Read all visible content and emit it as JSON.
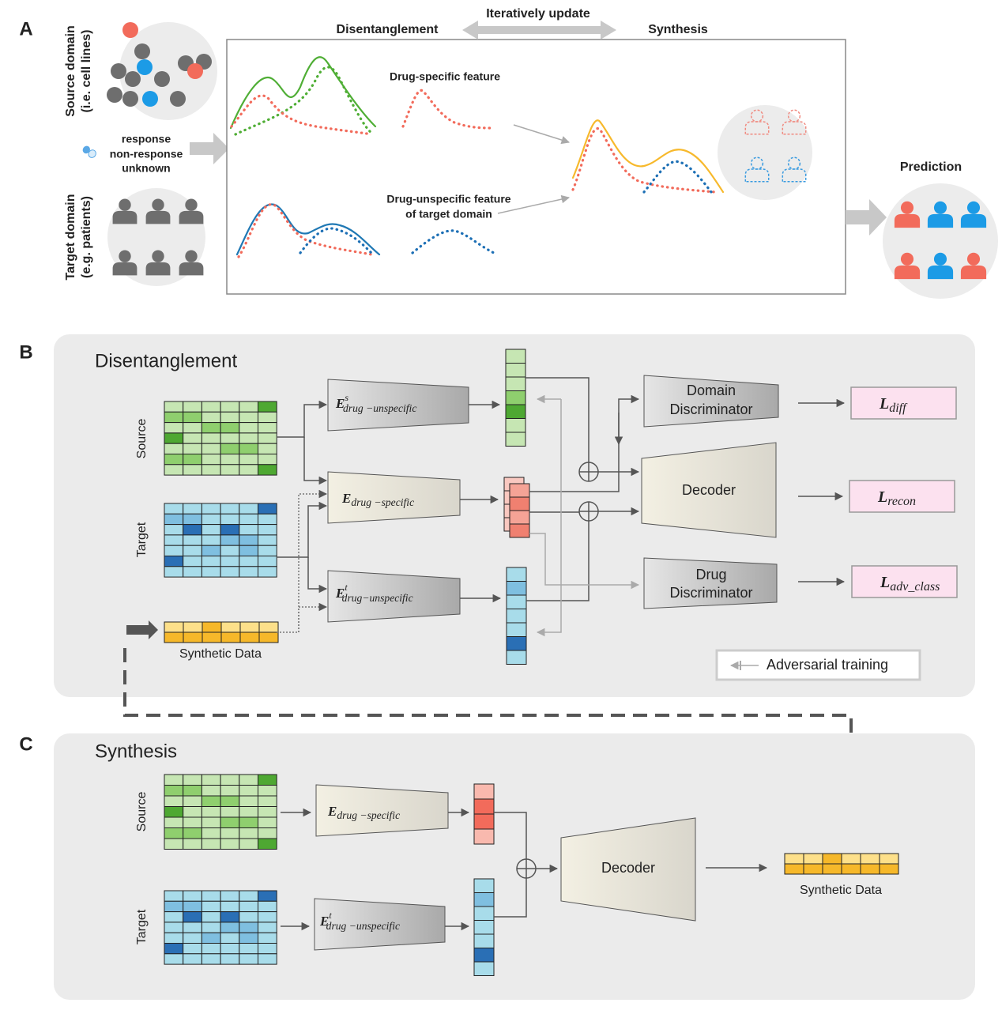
{
  "panel_a": {
    "label": "A",
    "source_domain": [
      "Source domain",
      "(i.e. cell lines)"
    ],
    "target_domain": [
      "Target domain",
      "(e.g. patients)"
    ],
    "legend": [
      "response",
      "non-response",
      "unknown"
    ],
    "disentanglement": "Disentanglement",
    "iteratively_update": "Iteratively update",
    "synthesis": "Synthesis",
    "drug_specific_feature": "Drug-specific feature",
    "drug_unspecific_feature": [
      "Drug-unspecific feature",
      "of target domain"
    ],
    "prediction": "Prediction"
  },
  "panel_b": {
    "label": "B",
    "title": "Disentanglement",
    "source": "Source",
    "target": "Target",
    "synthetic_data": "Synthetic Data",
    "encoder_source_unspecific": {
      "symbol": "E",
      "superscript": "s",
      "subscript": "drug −unspecific"
    },
    "encoder_specific": {
      "symbol": "E",
      "subscript": "drug −specific"
    },
    "encoder_target_unspecific": {
      "symbol": "E",
      "superscript": "t",
      "subscript": "drug−unspecific"
    },
    "domain_discriminator": [
      "Domain",
      "Discriminator"
    ],
    "decoder": "Decoder",
    "drug_discriminator": [
      "Drug",
      "Discriminator"
    ],
    "loss_diff": {
      "symbol": "L",
      "subscript": "diff"
    },
    "loss_recon": {
      "symbol": "L",
      "subscript": "recon"
    },
    "loss_adv_class": {
      "symbol": "L",
      "subscript": "adv_class"
    },
    "adversarial_training": "Adversarial training"
  },
  "panel_c": {
    "label": "C",
    "title": "Synthesis",
    "source": "Source",
    "target": "Target",
    "encoder_specific": {
      "symbol": "E",
      "subscript": "drug −specific"
    },
    "encoder_target_unspecific": {
      "symbol": "E",
      "superscript": "t",
      "subscript": "drug −unspecific"
    },
    "decoder": "Decoder",
    "synthetic_data": "Synthetic Data"
  }
}
